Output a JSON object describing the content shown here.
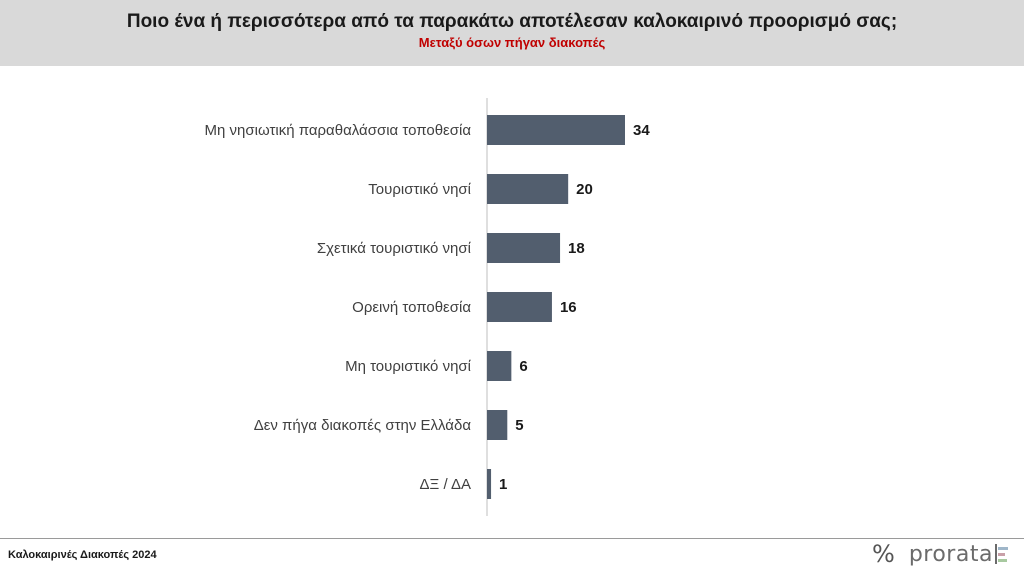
{
  "header": {
    "title": "Ποιο ένα ή περισσότερα από τα παρακάτω αποτέλεσαν καλοκαιρινό προορισμό σας;",
    "subtitle": "Μεταξύ όσων πήγαν διακοπές"
  },
  "chart_data": {
    "type": "bar",
    "orientation": "horizontal",
    "categories": [
      "Μη νησιωτική παραθαλάσσια τοποθεσία",
      "Τουριστικό νησί",
      "Σχετικά τουριστικό νησί",
      "Ορεινή τοποθεσία",
      "Μη τουριστικό νησί",
      "Δεν πήγα διακοπές στην Ελλάδα",
      "ΔΞ / ΔΑ"
    ],
    "values": [
      34,
      20,
      18,
      16,
      6,
      5,
      1
    ],
    "data_labels": [
      "34",
      "20",
      "18",
      "16",
      "6",
      "5",
      "1"
    ],
    "xlim": [
      0,
      100
    ],
    "grid": false,
    "bar_color": "#525e6e"
  },
  "footer": {
    "source": "Καλοκαιρινές Διακοπές 2024",
    "logo_text": "prorata",
    "logo_symbol": "%"
  },
  "colors": {
    "header_bg": "#d9d9d9",
    "subtitle": "#c00000",
    "bar": "#525e6e"
  }
}
